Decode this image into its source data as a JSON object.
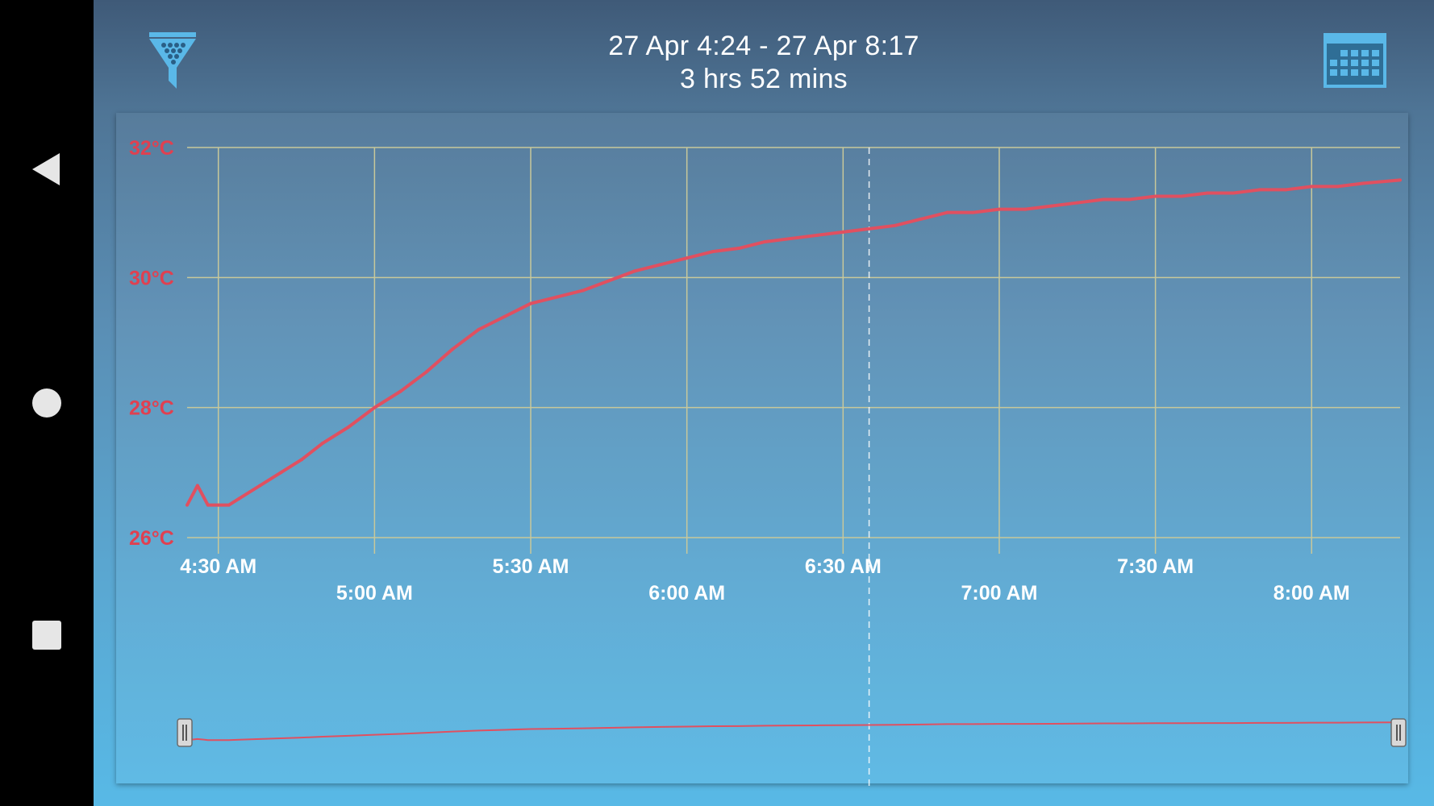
{
  "nav": {
    "back_icon": "back-triangle-icon",
    "home_icon": "home-circle-icon",
    "recents_icon": "recents-square-icon"
  },
  "header": {
    "date_range": "27 Apr 4:24 - 27 Apr 8:17",
    "duration": "3 hrs 52 mins",
    "filter_icon": "funnel-filter-icon",
    "calendar_icon": "calendar-icon"
  },
  "colors": {
    "series": "#e05060",
    "grid": "#c8c89a",
    "axis_label": "#e04050",
    "time_label": "#ffffff"
  },
  "chart_data": {
    "type": "line",
    "title": "",
    "xlabel": "",
    "ylabel": "",
    "x_ticks_row1": [
      "4:30 AM",
      "5:30 AM",
      "6:30 AM",
      "7:30 AM"
    ],
    "x_ticks_row2": [
      "5:00 AM",
      "6:00 AM",
      "7:00 AM",
      "8:00 AM"
    ],
    "x_tick_order": [
      "4:30 AM",
      "5:00 AM",
      "5:30 AM",
      "6:00 AM",
      "6:30 AM",
      "7:00 AM",
      "7:30 AM",
      "8:00 AM"
    ],
    "y_ticks": [
      "26°C",
      "28°C",
      "30°C",
      "32°C"
    ],
    "y_tick_values": [
      26,
      28,
      30,
      32
    ],
    "xlim": [
      "04:24",
      "08:17"
    ],
    "ylim": [
      26,
      32
    ],
    "grid": true,
    "cursor_time": "06:35",
    "series": [
      {
        "x": [
          "04:24",
          "04:26",
          "04:28",
          "04:30",
          "04:32",
          "04:34",
          "04:38",
          "04:42",
          "04:46",
          "04:50",
          "04:55",
          "05:00",
          "05:05",
          "05:10",
          "05:15",
          "05:20",
          "05:25",
          "05:30",
          "05:35",
          "05:40",
          "05:45",
          "05:50",
          "05:55",
          "06:00",
          "06:05",
          "06:10",
          "06:15",
          "06:20",
          "06:25",
          "06:30",
          "06:35",
          "06:40",
          "06:45",
          "06:50",
          "06:55",
          "07:00",
          "07:05",
          "07:10",
          "07:15",
          "07:20",
          "07:25",
          "07:30",
          "07:35",
          "07:40",
          "07:45",
          "07:50",
          "07:55",
          "08:00",
          "08:05",
          "08:10",
          "08:17"
        ],
        "y": [
          26.5,
          26.8,
          26.5,
          26.5,
          26.5,
          26.6,
          26.8,
          27.0,
          27.2,
          27.45,
          27.7,
          28.0,
          28.25,
          28.55,
          28.9,
          29.2,
          29.4,
          29.6,
          29.7,
          29.8,
          29.95,
          30.1,
          30.2,
          30.3,
          30.4,
          30.45,
          30.55,
          30.6,
          30.65,
          30.7,
          30.75,
          30.8,
          30.9,
          31.0,
          31.0,
          31.05,
          31.05,
          31.1,
          31.15,
          31.2,
          31.2,
          31.25,
          31.25,
          31.3,
          31.3,
          31.35,
          31.35,
          31.4,
          31.4,
          31.45,
          31.5
        ]
      }
    ]
  }
}
